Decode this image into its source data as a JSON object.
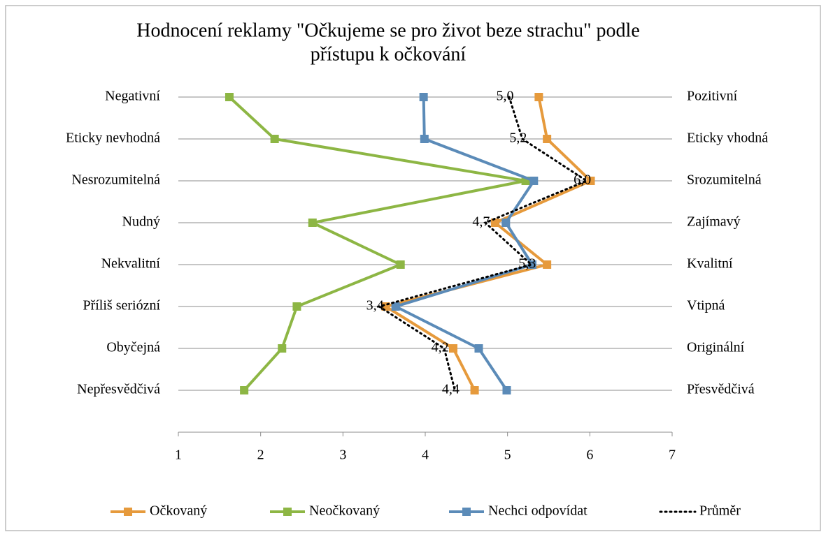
{
  "chart_data": {
    "type": "line",
    "title": [
      "Hodnocení reklamy \"Očkujeme se pro život beze strachu\" podle",
      "přístupu k očkování"
    ],
    "categories": [
      "Negativní",
      "Eticky nevhodná",
      "Nesrozumitelná",
      "Nudný",
      "Nekvalitní",
      "Příliš seriózní",
      "Obyčejná",
      "Nepřesvědčivá"
    ],
    "categories_right": [
      "Pozitivní",
      "Eticky vhodná",
      "Srozumitelná",
      "Zajímavý",
      "Kvalitní",
      "Vtipná",
      "Originální",
      "Přesvědčivá"
    ],
    "series": [
      {
        "name": "Očkovaný",
        "color": "#e69a3c",
        "values": [
          5.38,
          5.48,
          6.01,
          4.85,
          5.48,
          3.52,
          4.34,
          4.6
        ]
      },
      {
        "name": "Neočkovaný",
        "color": "#8db644",
        "values": [
          1.62,
          2.17,
          5.22,
          2.63,
          3.7,
          2.44,
          2.26,
          1.8
        ]
      },
      {
        "name": "Nechci odpovídat",
        "color": "#5b8bb8",
        "values": [
          3.98,
          3.99,
          5.32,
          4.98,
          5.3,
          3.64,
          4.65,
          4.99
        ]
      },
      {
        "name": "Průměr",
        "color": "#000000",
        "dotted": true,
        "values": [
          5.02,
          5.18,
          5.96,
          4.73,
          5.29,
          3.44,
          4.23,
          4.36
        ],
        "value_labels": [
          "5,0",
          "5,2",
          "6,0",
          "4,7",
          "5,3",
          "3,4",
          "4,2",
          "4,4"
        ]
      }
    ],
    "xlim": [
      1,
      7
    ],
    "xticks": [
      1,
      2,
      3,
      4,
      5,
      6,
      7
    ],
    "grid": true,
    "legend": "bottom"
  }
}
